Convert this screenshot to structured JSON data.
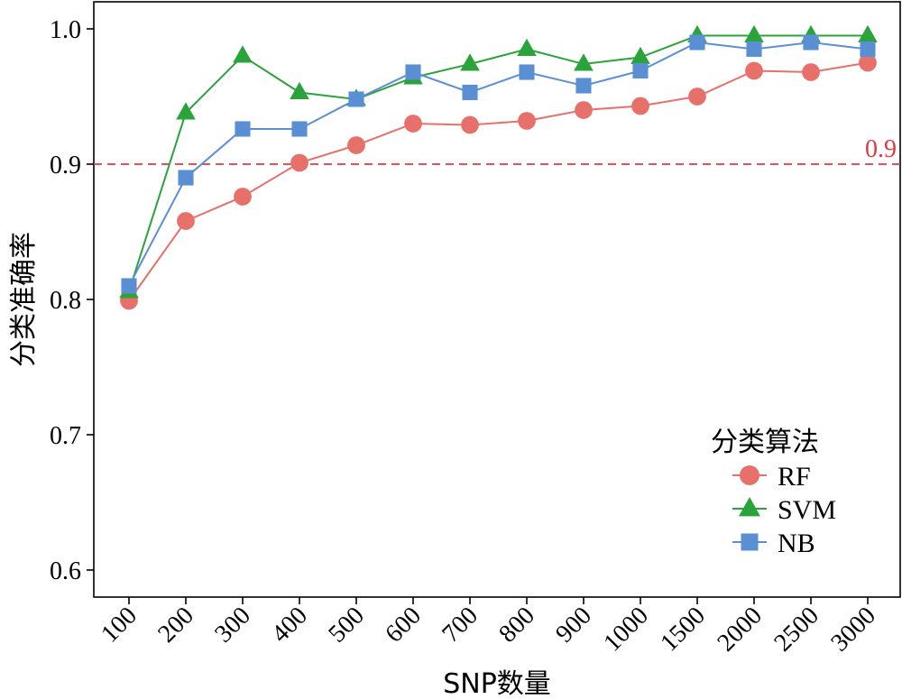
{
  "chart_data": {
    "type": "line",
    "xlabel": "SNP数量",
    "ylabel": "分类准确率",
    "categories": [
      "100",
      "200",
      "300",
      "400",
      "500",
      "600",
      "700",
      "800",
      "900",
      "1000",
      "1500",
      "2000",
      "2500",
      "3000"
    ],
    "ylim": [
      0.58,
      1.02
    ],
    "yticks": [
      "0.6",
      "0.7",
      "0.8",
      "0.9",
      "1.0"
    ],
    "grid": false,
    "legend": {
      "title": "分类算法",
      "position": "bottom-right"
    },
    "reference_line": {
      "value": 0.9,
      "label": "0.9",
      "color": "#e0393e",
      "style": "dashed"
    },
    "series": [
      {
        "name": "RF",
        "color": "#e8706b",
        "marker": "circle",
        "values": [
          0.799,
          0.858,
          0.876,
          0.901,
          0.914,
          0.93,
          0.929,
          0.932,
          0.94,
          0.943,
          0.95,
          0.969,
          0.968,
          0.975
        ]
      },
      {
        "name": "SVM",
        "color": "#2aa33b",
        "marker": "triangle",
        "values": [
          0.806,
          0.938,
          0.98,
          0.953,
          0.948,
          0.964,
          0.974,
          0.985,
          0.974,
          0.979,
          0.995,
          0.995,
          0.995,
          0.995
        ]
      },
      {
        "name": "NB",
        "color": "#5b8fd3",
        "marker": "square",
        "values": [
          0.81,
          0.89,
          0.926,
          0.926,
          0.948,
          0.968,
          0.953,
          0.968,
          0.958,
          0.969,
          0.99,
          0.985,
          0.99,
          0.985
        ]
      }
    ]
  }
}
